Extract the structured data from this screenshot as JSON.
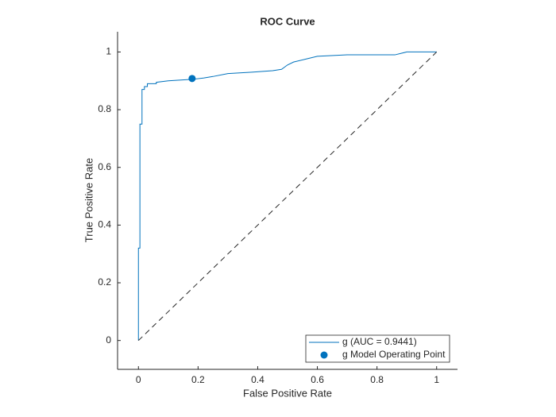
{
  "chart_data": {
    "type": "line",
    "title": "ROC Curve",
    "xlabel": "False Positive Rate",
    "ylabel": "True Positive Rate",
    "xlim": [
      -0.07,
      1.07
    ],
    "ylim": [
      -0.1,
      1.07
    ],
    "xticks": [
      0,
      0.2,
      0.4,
      0.6,
      0.8,
      1
    ],
    "yticks": [
      0,
      0.2,
      0.4,
      0.6,
      0.8,
      1
    ],
    "legend": "lower right",
    "series": [
      {
        "name": "g (AUC = 0.9441)",
        "color": "#0072bd",
        "mode": "line",
        "x": [
          0,
          0,
          0.005,
          0.005,
          0.012,
          0.012,
          0.02,
          0.02,
          0.03,
          0.03,
          0.06,
          0.06,
          0.1,
          0.18,
          0.22,
          0.25,
          0.3,
          0.38,
          0.45,
          0.48,
          0.5,
          0.52,
          0.56,
          0.6,
          0.7,
          0.86,
          0.9,
          0.99,
          1
        ],
        "values": [
          0,
          0.32,
          0.32,
          0.75,
          0.75,
          0.87,
          0.87,
          0.88,
          0.88,
          0.89,
          0.89,
          0.895,
          0.9,
          0.905,
          0.91,
          0.915,
          0.925,
          0.93,
          0.935,
          0.94,
          0.955,
          0.965,
          0.975,
          0.985,
          0.99,
          0.99,
          1,
          1,
          1
        ]
      },
      {
        "name": "g Model Operating Point",
        "color": "#0072bd",
        "mode": "marker",
        "x": [
          0.18
        ],
        "values": [
          0.908
        ]
      },
      {
        "color": "#262626",
        "mode": "dashed",
        "x": [
          0,
          1
        ],
        "values": [
          0,
          1
        ]
      }
    ]
  }
}
